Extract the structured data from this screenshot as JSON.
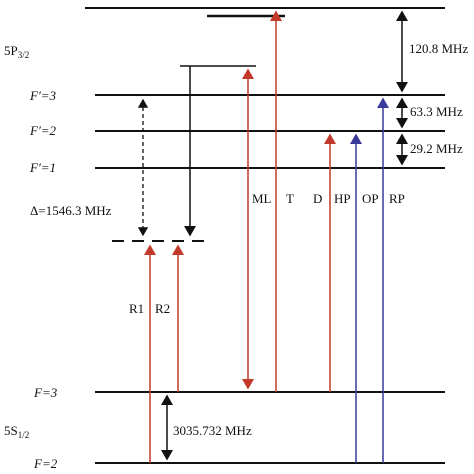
{
  "levels": {
    "excited_manifold": {
      "label": "5P",
      "sub": "3/2"
    },
    "ground_manifold": {
      "label": "5S",
      "sub": "1/2"
    },
    "fp3": "F′=3",
    "fp2": "F′=2",
    "fp1": "F′=1",
    "f3": "F=3",
    "f2": "F=2"
  },
  "detuning": "Δ=1546.3 MHz",
  "transitions": {
    "r1": "R1",
    "r2": "R2",
    "ml": "ML",
    "t": "T",
    "d": "D",
    "hp": "HP",
    "op": "OP",
    "rp": "RP"
  },
  "spacings": {
    "top": "120.8 MHz",
    "fp3_fp2": "63.3 MHz",
    "fp2_fp1": "29.2 MHz",
    "ground": "3035.732 MHz"
  }
}
